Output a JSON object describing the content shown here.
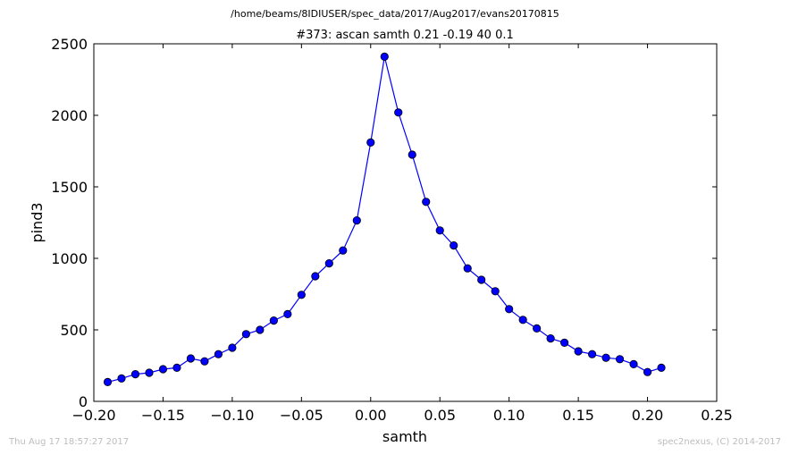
{
  "chart_data": {
    "type": "line",
    "suptitle": "/home/beams/8IDIUSER/spec_data/2017/Aug2017/evans20170815",
    "title": "#373: ascan  samth 0.21 -0.19  40 0.1",
    "xlabel": "samth",
    "ylabel": "pind3",
    "xlim": [
      -0.2,
      0.25
    ],
    "ylim": [
      0,
      2500
    ],
    "xticks": [
      "−0.20",
      "−0.15",
      "−0.10",
      "−0.05",
      "0.00",
      "0.05",
      "0.10",
      "0.15",
      "0.20",
      "0.25"
    ],
    "xtick_values": [
      -0.2,
      -0.15,
      -0.1,
      -0.05,
      0.0,
      0.05,
      0.1,
      0.15,
      0.2,
      0.25
    ],
    "yticks": [
      "0",
      "500",
      "1000",
      "1500",
      "2000",
      "2500"
    ],
    "ytick_values": [
      0,
      500,
      1000,
      1500,
      2000,
      2500
    ],
    "grid": false,
    "color": "#0000ff",
    "series": [
      {
        "x": [
          -0.19,
          -0.18,
          -0.17,
          -0.16,
          -0.15,
          -0.14,
          -0.13,
          -0.12,
          -0.11,
          -0.1,
          -0.09,
          -0.08,
          -0.07,
          -0.06,
          -0.05,
          -0.04,
          -0.03,
          -0.02,
          -0.01,
          0.0,
          0.01,
          0.02,
          0.03,
          0.04,
          0.05,
          0.06,
          0.07,
          0.08,
          0.09,
          0.1,
          0.11,
          0.12,
          0.13,
          0.14,
          0.15,
          0.16,
          0.17,
          0.18,
          0.19,
          0.2,
          0.21
        ],
        "y": [
          135,
          160,
          190,
          200,
          225,
          235,
          300,
          280,
          330,
          375,
          470,
          500,
          565,
          610,
          745,
          875,
          965,
          1055,
          1265,
          1810,
          2410,
          2020,
          1725,
          1395,
          1195,
          1090,
          930,
          850,
          770,
          645,
          570,
          510,
          440,
          410,
          350,
          330,
          305,
          295,
          260,
          205,
          235
        ]
      }
    ]
  },
  "footer": {
    "timestamp": "Thu Aug 17 18:57:27 2017",
    "credit": "spec2nexus, (C) 2014-2017"
  }
}
